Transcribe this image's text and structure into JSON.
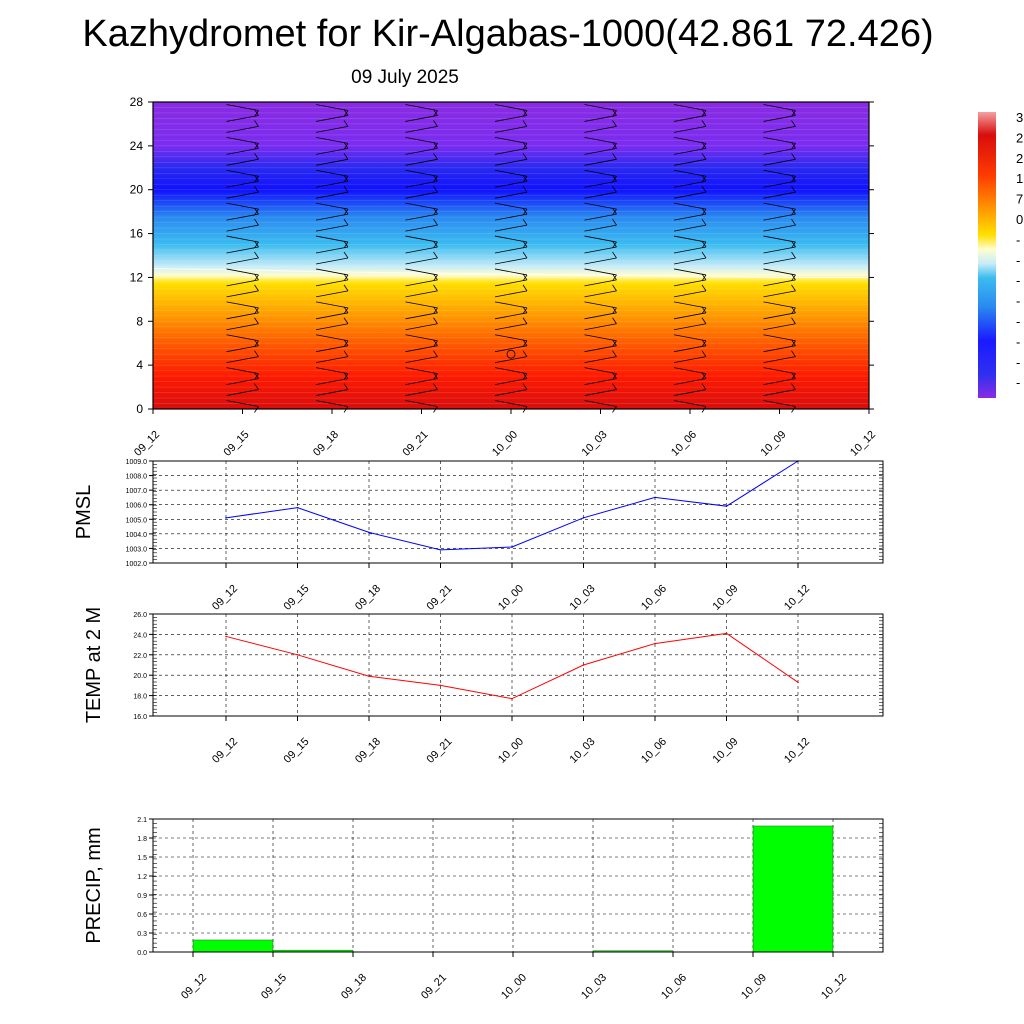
{
  "title": "Kazhydromet for Kir-Algabas-1000(42.861 72.426)",
  "date": "09 July 2025",
  "time_labels": [
    "09_12",
    "09_15",
    "09_18",
    "09_21",
    "10_00",
    "10_03",
    "10_06",
    "10_09",
    "10_12"
  ],
  "colorbar": {
    "tick_labels": [
      "3",
      "2",
      "2",
      "1",
      "7",
      "0",
      "-",
      "-",
      "-",
      "-",
      "-",
      "-",
      "-",
      "-"
    ]
  },
  "chart_data": [
    {
      "type": "heatmap",
      "name": "cross-section",
      "xlabel": "",
      "ylabel": "",
      "x": [
        "09_12",
        "09_15",
        "09_18",
        "09_21",
        "10_00",
        "10_03",
        "10_06",
        "10_09",
        "10_12"
      ],
      "ylim": [
        0,
        28
      ],
      "yticks": [
        0,
        4,
        8,
        12,
        16,
        20,
        24,
        28
      ],
      "bands": [
        {
          "y": 0,
          "color": "#d80d0d"
        },
        {
          "y": 3,
          "color": "#ff1a00"
        },
        {
          "y": 6,
          "color": "#ff5a00"
        },
        {
          "y": 9,
          "color": "#ffa500"
        },
        {
          "y": 11.5,
          "color": "#ffe000"
        },
        {
          "y": 12.2,
          "color": "#fffdd0"
        },
        {
          "y": 13,
          "color": "#c8ecf8"
        },
        {
          "y": 15,
          "color": "#3bbcf0"
        },
        {
          "y": 17.5,
          "color": "#2a8af0"
        },
        {
          "y": 20,
          "color": "#1010ff"
        },
        {
          "y": 22,
          "color": "#2a2af0"
        },
        {
          "y": 24,
          "color": "#7a2cf0"
        },
        {
          "y": 28,
          "color": "#8a2be2"
        }
      ],
      "freezing_level": [
        12.8,
        12.7,
        12.5,
        12.4,
        12.3,
        12.2,
        12.1,
        12.0,
        12.0
      ],
      "wind_barb_levels": [
        0.5,
        1.5,
        2.5,
        3.5,
        4.5,
        5.5,
        6.5,
        7.5,
        8.5,
        9.5,
        10.5,
        11.5,
        12.5,
        13.5,
        14.5,
        15.5,
        16.5,
        17.5,
        18.5,
        19.5,
        20.5,
        21.5,
        22.5,
        23.5,
        24.5,
        25.5,
        26.5,
        27.5
      ]
    },
    {
      "type": "line",
      "name": "PMSL",
      "ylabel": "PMSL",
      "x": [
        "09_12",
        "09_15",
        "09_18",
        "09_21",
        "10_00",
        "10_03",
        "10_06",
        "10_09",
        "10_12"
      ],
      "values": [
        1005.1,
        1005.8,
        1004.1,
        1002.9,
        1003.1,
        1005.1,
        1006.5,
        1005.9,
        1009.0
      ],
      "ylim": [
        1002.0,
        1009.0
      ],
      "yticks": [
        "1002.0",
        "1003.0",
        "1004.0",
        "1005.0",
        "1006.0",
        "1007.0",
        "1008.0",
        "1009.0"
      ],
      "color": "#0000ff"
    },
    {
      "type": "line",
      "name": "TEMP",
      "ylabel": "TEMP at 2 M",
      "x": [
        "09_12",
        "09_15",
        "09_18",
        "09_21",
        "10_00",
        "10_03",
        "10_06",
        "10_09",
        "10_12"
      ],
      "values": [
        23.8,
        22.0,
        19.9,
        19.0,
        17.7,
        21.0,
        23.1,
        24.1,
        19.3
      ],
      "ylim": [
        16.0,
        26.0
      ],
      "yticks": [
        "16.0",
        "18.0",
        "20.0",
        "22.0",
        "24.0",
        "26.0"
      ],
      "color": "#ff0000"
    },
    {
      "type": "bar",
      "name": "PRECIP",
      "ylabel": "PRECIP, mm",
      "categories": [
        "09_12",
        "09_15",
        "09_18",
        "09_21",
        "10_00",
        "10_03",
        "10_06",
        "10_09",
        "10_12"
      ],
      "values": [
        0.0,
        0.19,
        0.03,
        0.0,
        0.0,
        0.0,
        0.02,
        0.0,
        1.99
      ],
      "ylim": [
        0,
        2.1
      ],
      "yticks": [
        "0.0",
        "0.3",
        "0.6",
        "0.9",
        "1.2",
        "1.5",
        "1.8",
        "2.1"
      ],
      "color": "#00ff00"
    }
  ]
}
